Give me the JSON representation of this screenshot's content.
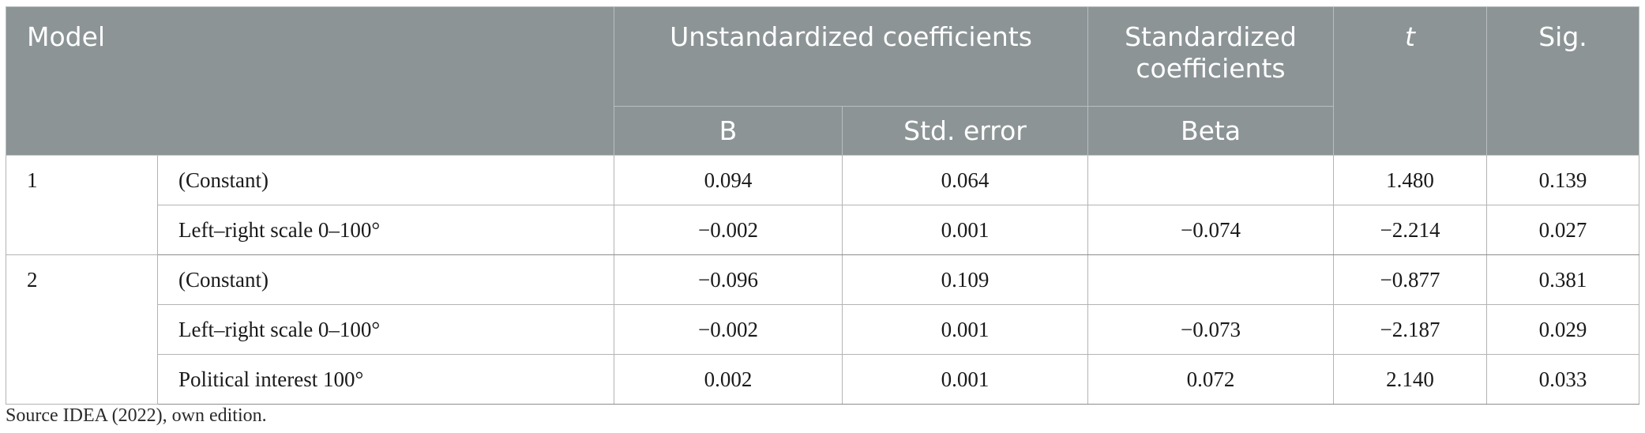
{
  "table": {
    "headers": {
      "model": "Model",
      "unstandardized": "Unstandardized coefficients",
      "standardized_line1": "Standardized",
      "standardized_line2": "coefficients",
      "t": "t",
      "sig": "Sig.",
      "b": "B",
      "std_error": "Std. error",
      "beta": "Beta"
    },
    "models": [
      {
        "label": "1",
        "rows": [
          {
            "variable": "(Constant)",
            "b": "0.094",
            "se": "0.064",
            "beta": "",
            "t": "1.480",
            "sig": "0.139"
          },
          {
            "variable": "Left–right scale 0–100°",
            "b": "−0.002",
            "se": "0.001",
            "beta": "−0.074",
            "t": "−2.214",
            "sig": "0.027"
          }
        ]
      },
      {
        "label": "2",
        "rows": [
          {
            "variable": "(Constant)",
            "b": "−0.096",
            "se": "0.109",
            "beta": "",
            "t": "−0.877",
            "sig": "0.381"
          },
          {
            "variable": "Left–right scale 0–100°",
            "b": "−0.002",
            "se": "0.001",
            "beta": "−0.073",
            "t": "−2.187",
            "sig": "0.029"
          },
          {
            "variable": "Political interest 100°",
            "b": "0.002",
            "se": "0.001",
            "beta": "0.072",
            "t": "2.140",
            "sig": "0.033"
          }
        ]
      }
    ]
  },
  "footnote": "Source IDEA (2022), own edition.",
  "colors": {
    "header_bg": "#8c9496",
    "header_text": "#ffffff",
    "grid": "#b3b3b3"
  }
}
